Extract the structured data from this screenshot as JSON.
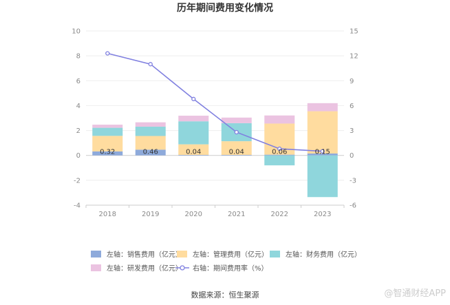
{
  "chart_data": {
    "type": "bar",
    "title": "历年期间费用变化情况",
    "categories": [
      "2018",
      "2019",
      "2020",
      "2021",
      "2022",
      "2023"
    ],
    "series": [
      {
        "name": "左轴：销售费用（亿元）",
        "type": "bar",
        "axis": "left",
        "color": "#8eaadb",
        "values": [
          0.32,
          0.46,
          0.04,
          0.04,
          0.06,
          0.15
        ],
        "labels": [
          "0.32",
          "0.46",
          "0.04",
          "0.04",
          "0.06",
          "0.15"
        ]
      },
      {
        "name": "左轴：管理费用（亿元）",
        "type": "bar",
        "axis": "left",
        "color": "#ffdc9f",
        "values": [
          1.25,
          1.1,
          0.85,
          1.1,
          2.5,
          3.4
        ]
      },
      {
        "name": "左轴：财务费用（亿元）",
        "type": "bar",
        "axis": "left",
        "color": "#8fd6dc",
        "values": [
          0.65,
          0.75,
          1.85,
          1.45,
          -0.8,
          -3.35
        ]
      },
      {
        "name": "左轴：研发费用（亿元）",
        "type": "bar",
        "axis": "left",
        "color": "#ebc3e1",
        "values": [
          0.25,
          0.35,
          0.45,
          0.45,
          0.65,
          0.65
        ]
      },
      {
        "name": "右轴：期间费用率（%）",
        "type": "line",
        "axis": "right",
        "color": "#8080e0",
        "values": [
          12.3,
          11.0,
          6.8,
          2.8,
          0.8,
          0.5
        ]
      }
    ],
    "y_left": {
      "min": -4,
      "max": 10,
      "ticks": [
        "-4",
        "-2",
        "0",
        "2",
        "4",
        "6",
        "8",
        "10"
      ]
    },
    "y_right": {
      "min": -6,
      "max": 15,
      "ticks": [
        "-6",
        "-3",
        "0",
        "3",
        "6",
        "9",
        "12",
        "15"
      ]
    },
    "grid": true,
    "legend_position": "bottom"
  },
  "source": "数据来源：恒生聚源",
  "watermark": "@智通财经APP"
}
